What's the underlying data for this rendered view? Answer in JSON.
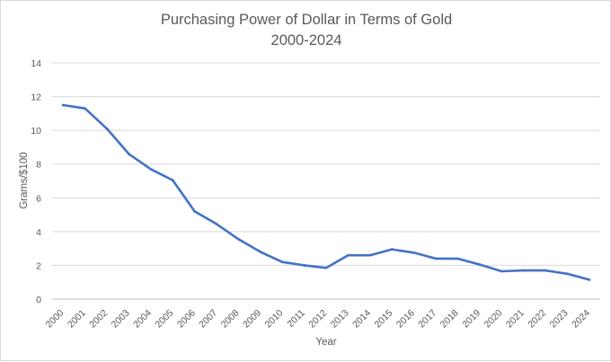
{
  "chart_data": {
    "type": "line",
    "title": [
      "Purchasing Power of Dollar in Terms of Gold",
      "2000-2024"
    ],
    "xlabel": "Year",
    "ylabel": "Grams/$100",
    "ylim": [
      0,
      14
    ],
    "yticks": [
      "0",
      "2",
      "4",
      "6",
      "8",
      "10",
      "12",
      "14"
    ],
    "grid": "horizontal",
    "legend": "none",
    "categories": [
      "2000",
      "2001",
      "2002",
      "2003",
      "2004",
      "2005",
      "2006",
      "2007",
      "2008",
      "2009",
      "2010",
      "2011",
      "2012",
      "2013",
      "2014",
      "2015",
      "2016",
      "2017",
      "2018",
      "2019",
      "2020",
      "2021",
      "2022",
      "2023",
      "2024"
    ],
    "series": [
      {
        "color": "#4472c4",
        "values": [
          11.5,
          11.3,
          10.1,
          8.6,
          7.7,
          7.05,
          5.2,
          4.45,
          3.55,
          2.8,
          2.2,
          2.0,
          1.85,
          2.6,
          2.6,
          2.95,
          2.75,
          2.4,
          2.4,
          2.05,
          1.65,
          1.7,
          1.7,
          1.5,
          1.15
        ]
      }
    ]
  }
}
